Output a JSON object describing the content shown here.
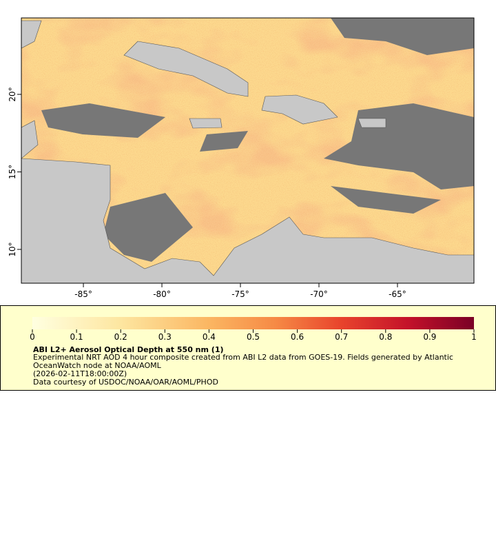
{
  "map": {
    "title": "ABI L2+ Aerosol Optical Depth at 550 nm (1)",
    "description": [
      "Experimental NRT AOD 4 hour composite created from ABI L2 data from GOES-19. Fields generated by Atlantic",
      "OceanWatch node at NOAA/AOML",
      "(2026-02-11T18:00:00Z)",
      "Data courtesy of USDOC/NOAA/OAR/AOML/PHOD"
    ],
    "xlim": [
      -88.95,
      -60.13
    ],
    "ylim": [
      7.82,
      24.93
    ],
    "xticks": [
      {
        "value": -85,
        "label": "-85°"
      },
      {
        "value": -80,
        "label": "-80°"
      },
      {
        "value": -75,
        "label": "-75°"
      },
      {
        "value": -70,
        "label": "-70°"
      },
      {
        "value": -65,
        "label": "-65°"
      }
    ],
    "yticks": [
      {
        "value": 10,
        "label": "10°"
      },
      {
        "value": 15,
        "label": "15°"
      },
      {
        "value": 20,
        "label": "20°"
      }
    ],
    "colorbar": {
      "lim": [
        0,
        1
      ],
      "ticks": [
        0,
        0.1,
        0.2,
        0.3,
        0.4,
        0.5,
        0.6,
        0.7,
        0.8,
        0.9,
        1
      ]
    }
  }
}
